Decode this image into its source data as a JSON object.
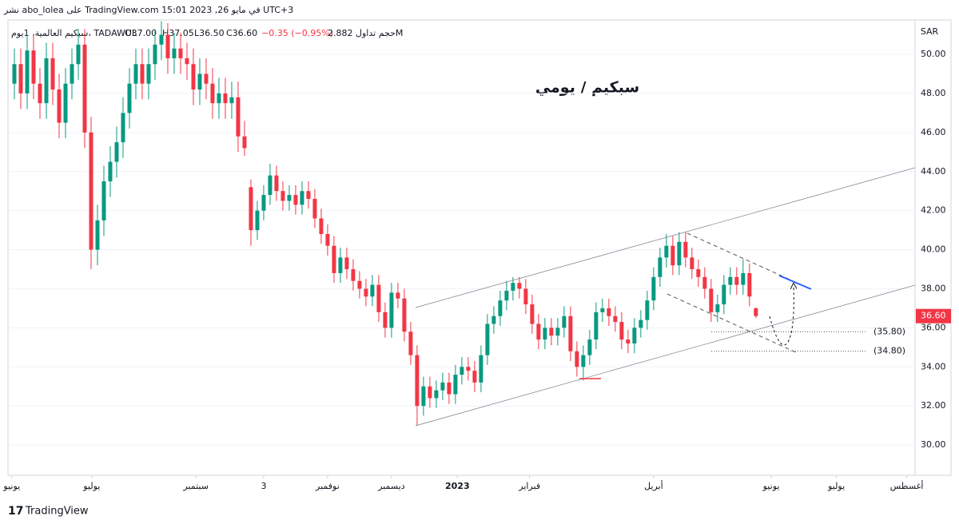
{
  "chart_data": {
    "type": "candlestick",
    "header": "نشر abo_lolea على TradingView.com في مايو 26, 2023 15:01 UTC+3",
    "symbol": "سبكيم العالمية، 1يوم، TADAWUL",
    "legend_open": "O37.00",
    "legend_high": "H37.05",
    "legend_low": "L36.50",
    "legend_close": "C36.60",
    "legend_change": "−0.35 (−0.95%)",
    "legend_volume": "حجم تداول 2.882M",
    "title": "سبكيم / يومي",
    "currency": "SAR",
    "footer": "TradingView",
    "up_color": "#089981",
    "down_color": "#f23645",
    "open": [
      48.5,
      49.5,
      48.0,
      50.2,
      48.5,
      47.5,
      49.8,
      48.2,
      46.5,
      48.5,
      49.5,
      50.5,
      46.0,
      40.0,
      41.5,
      43.5,
      44.5,
      45.5,
      47.0,
      48.5,
      49.5,
      48.5,
      49.5,
      50.5,
      51.0,
      49.8,
      50.3,
      49.8,
      49.5,
      48.2,
      49.0,
      48.5,
      47.5,
      48.0,
      47.5,
      47.8,
      45.8,
      43.2,
      41.0,
      42.0,
      42.8,
      43.8,
      43.0,
      42.5,
      42.8,
      42.3,
      43.0,
      42.6,
      41.6,
      40.8,
      40.2,
      38.8,
      39.6,
      39.0,
      38.4,
      38.0,
      37.6,
      38.2,
      36.8,
      36.0,
      37.8,
      37.5,
      35.8,
      34.6,
      32.0,
      33.0,
      32.4,
      32.8,
      33.2,
      32.6,
      33.6,
      34.0,
      33.8,
      33.2,
      34.6,
      36.2,
      36.6,
      37.4,
      37.9,
      38.3,
      38.0,
      37.2,
      36.2,
      35.4,
      36.0,
      35.6,
      36.0,
      36.6,
      34.8,
      34.0,
      34.6,
      35.4,
      36.8,
      37.0,
      36.6,
      36.3,
      35.4,
      35.2,
      36.0,
      36.4,
      37.4,
      38.6,
      39.6,
      40.2,
      39.2,
      40.4,
      39.6,
      39.0,
      38.6,
      38.0,
      36.8,
      37.2,
      38.2,
      38.6,
      38.2,
      38.8,
      37.0
    ],
    "high": [
      50.3,
      50.3,
      51.0,
      51.0,
      49.3,
      50.6,
      50.6,
      49.0,
      49.3,
      50.3,
      51.3,
      51.3,
      46.8,
      42.3,
      44.3,
      45.3,
      46.3,
      47.8,
      49.3,
      50.3,
      50.3,
      50.3,
      51.3,
      51.7,
      51.6,
      51.1,
      51.1,
      50.6,
      50.3,
      49.8,
      49.8,
      49.3,
      48.8,
      48.8,
      48.6,
      48.6,
      46.6,
      43.6,
      42.5,
      43.3,
      44.4,
      44.3,
      43.5,
      43.3,
      43.3,
      43.5,
      43.5,
      43.1,
      42.1,
      41.3,
      40.7,
      40.1,
      40.1,
      39.5,
      38.9,
      38.5,
      38.7,
      38.7,
      37.3,
      38.3,
      38.3,
      38.0,
      36.3,
      35.1,
      33.5,
      33.5,
      33.3,
      33.7,
      33.7,
      34.1,
      34.5,
      34.5,
      34.3,
      35.1,
      36.7,
      37.1,
      37.9,
      38.4,
      38.6,
      38.6,
      38.5,
      37.7,
      36.7,
      36.5,
      36.5,
      36.5,
      37.1,
      37.1,
      35.3,
      35.1,
      35.9,
      37.3,
      37.5,
      37.5,
      37.1,
      36.8,
      35.9,
      36.5,
      36.9,
      37.9,
      39.1,
      40.1,
      40.8,
      40.7,
      40.9,
      40.9,
      40.1,
      39.5,
      39.1,
      38.5,
      37.7,
      38.7,
      39.1,
      39.1,
      39.5,
      39.3,
      37.05
    ],
    "low": [
      47.7,
      47.2,
      47.2,
      47.7,
      46.7,
      46.7,
      47.4,
      45.7,
      45.7,
      47.7,
      48.7,
      45.2,
      39.0,
      39.2,
      40.7,
      42.7,
      43.7,
      44.7,
      46.2,
      47.7,
      47.7,
      47.7,
      48.7,
      49.7,
      49.0,
      49.0,
      49.0,
      48.7,
      47.4,
      47.4,
      47.7,
      46.7,
      46.7,
      46.7,
      46.7,
      45.0,
      44.8,
      40.2,
      40.5,
      41.5,
      42.3,
      42.5,
      42.0,
      42.0,
      41.8,
      41.8,
      42.1,
      41.1,
      40.3,
      39.7,
      38.3,
      38.3,
      38.5,
      37.9,
      37.5,
      37.1,
      37.1,
      36.3,
      35.5,
      35.5,
      37.0,
      35.3,
      34.1,
      31.0,
      31.5,
      31.9,
      31.9,
      32.3,
      32.1,
      32.1,
      33.1,
      33.3,
      32.7,
      32.7,
      34.1,
      35.7,
      36.1,
      36.9,
      37.4,
      37.5,
      36.7,
      35.7,
      34.9,
      34.9,
      35.1,
      35.1,
      35.5,
      34.3,
      33.5,
      33.3,
      34.1,
      34.9,
      36.3,
      36.1,
      35.8,
      34.9,
      34.7,
      34.7,
      35.5,
      35.9,
      36.9,
      38.1,
      39.1,
      38.7,
      38.7,
      39.1,
      38.5,
      38.1,
      37.5,
      36.3,
      36.3,
      36.7,
      37.7,
      37.7,
      37.7,
      37.1,
      36.5
    ],
    "close": [
      49.5,
      48.0,
      50.2,
      48.5,
      47.5,
      49.8,
      48.2,
      46.5,
      48.5,
      49.5,
      50.5,
      46.0,
      40.0,
      41.5,
      43.5,
      44.5,
      45.5,
      47.0,
      48.5,
      49.5,
      48.5,
      49.5,
      50.5,
      51.0,
      49.8,
      50.3,
      49.8,
      49.5,
      48.2,
      49.0,
      48.5,
      47.5,
      48.0,
      47.5,
      47.8,
      45.8,
      45.2,
      41.0,
      42.0,
      42.8,
      43.8,
      43.0,
      42.5,
      42.8,
      42.3,
      43.0,
      42.6,
      41.6,
      40.8,
      40.2,
      38.8,
      39.6,
      39.0,
      38.4,
      38.0,
      37.6,
      38.2,
      36.8,
      36.0,
      37.8,
      37.5,
      35.8,
      34.6,
      32.0,
      33.0,
      32.4,
      32.8,
      33.2,
      32.6,
      33.6,
      34.0,
      33.8,
      33.2,
      34.6,
      36.2,
      36.6,
      37.4,
      37.9,
      38.3,
      38.0,
      37.2,
      36.2,
      35.4,
      36.0,
      35.6,
      36.0,
      36.6,
      34.8,
      34.0,
      34.6,
      35.4,
      36.8,
      37.0,
      36.6,
      36.3,
      35.4,
      35.2,
      36.0,
      36.4,
      37.4,
      38.6,
      39.6,
      40.2,
      39.2,
      40.4,
      39.6,
      39.0,
      38.6,
      38.0,
      36.8,
      37.2,
      38.2,
      38.6,
      38.2,
      38.8,
      37.6,
      36.6
    ],
    "last_price": {
      "value": 36.6,
      "label": "36.60"
    },
    "annotations": [
      {
        "text": "(35.80)",
        "value": 35.8
      },
      {
        "text": "(34.80)",
        "value": 34.8
      }
    ],
    "xlim": [
      -1,
      140.9
    ],
    "xticks": [
      {
        "value": -0.4,
        "label": "يونيو"
      },
      {
        "value": 12.1,
        "label": "يوليو"
      },
      {
        "value": 28.4,
        "label": "سبتمبر"
      },
      {
        "value": 39,
        "label": "3"
      },
      {
        "value": 49,
        "label": "نوفمبر"
      },
      {
        "value": 59,
        "label": "ديسمبر"
      },
      {
        "value": 69.3,
        "label": "2023"
      },
      {
        "value": 80.6,
        "label": "فبراير"
      },
      {
        "value": 100,
        "label": "أبريل"
      },
      {
        "value": 118.4,
        "label": "يونيو"
      },
      {
        "value": 128.6,
        "label": "يوليو"
      },
      {
        "value": 139.6,
        "label": "أغسطس"
      }
    ],
    "ylim": [
      28.45,
      51.76
    ],
    "yticks": [
      {
        "value": 30,
        "label": "30.00"
      },
      {
        "value": 32,
        "label": "32.00"
      },
      {
        "value": 34,
        "label": "34.00"
      },
      {
        "value": 36,
        "label": "36.00"
      },
      {
        "value": 38,
        "label": "38.00"
      },
      {
        "value": 40,
        "label": "40.00"
      },
      {
        "value": 42,
        "label": "42.00"
      },
      {
        "value": 44,
        "label": "44.00"
      },
      {
        "value": 46,
        "label": "46.00"
      },
      {
        "value": 48,
        "label": "48.00"
      },
      {
        "value": 50,
        "label": "50.00"
      }
    ]
  }
}
